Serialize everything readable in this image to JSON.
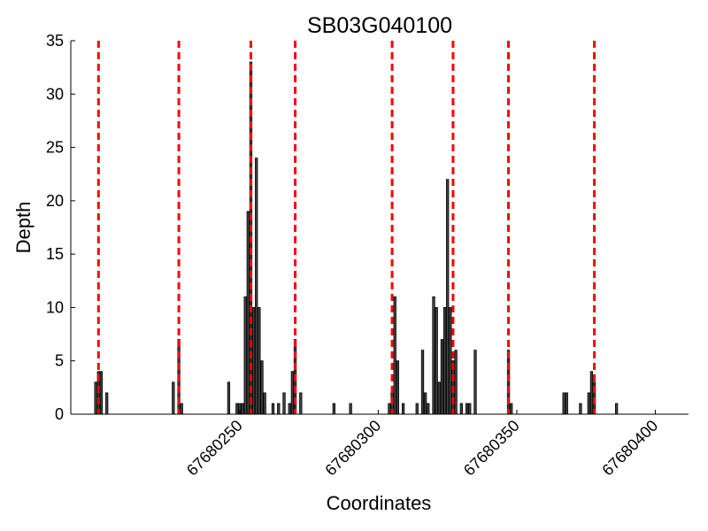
{
  "chart_data": {
    "type": "bar",
    "title": "SB03G040100",
    "xlabel": "Coordinates",
    "ylabel": "Depth",
    "xlim": [
      67680189,
      67680412
    ],
    "ylim": [
      0,
      35
    ],
    "xticks": [
      67680250,
      67680300,
      67680350,
      67680400
    ],
    "xtick_labels": [
      "67680250",
      "67680300",
      "67680350",
      "67680400"
    ],
    "yticks": [
      0,
      5,
      10,
      15,
      20,
      25,
      30,
      35
    ],
    "ytick_labels": [
      "0",
      "5",
      "10",
      "15",
      "20",
      "25",
      "30",
      "35"
    ],
    "grid": false,
    "bar_color": "#444444",
    "marker_color": "#ff0000",
    "marker_lines_x": [
      67680199,
      67680228,
      67680254,
      67680270,
      67680305,
      67680327,
      67680347,
      67680378
    ],
    "x": [
      67680198,
      67680199,
      67680200,
      67680202,
      67680226,
      67680228,
      67680229,
      67680246,
      67680249,
      67680250,
      67680251,
      67680252,
      67680253,
      67680254,
      67680255,
      67680256,
      67680257,
      67680258,
      67680259,
      67680262,
      67680264,
      67680266,
      67680268,
      67680269,
      67680270,
      67680272,
      67680284,
      67680290,
      67680304,
      67680305,
      67680306,
      67680307,
      67680309,
      67680314,
      67680316,
      67680317,
      67680318,
      67680320,
      67680321,
      67680322,
      67680323,
      67680324,
      67680325,
      67680326,
      67680327,
      67680328,
      67680330,
      67680332,
      67680333,
      67680335,
      67680347,
      67680348,
      67680367,
      67680368,
      67680373,
      67680376,
      67680377,
      67680378,
      67680386
    ],
    "values": [
      3,
      4,
      4,
      2,
      3,
      7,
      1,
      3,
      1,
      1,
      1,
      11,
      19,
      33,
      10,
      24,
      10,
      5,
      2,
      1,
      1,
      2,
      1,
      4,
      7,
      2,
      1,
      1,
      1,
      2,
      11,
      5,
      1,
      1,
      6,
      2,
      1,
      11,
      10,
      3,
      7,
      10,
      22,
      10,
      5,
      6,
      1,
      1,
      1,
      6,
      6,
      1,
      2,
      2,
      1,
      2,
      4,
      3,
      1
    ]
  }
}
